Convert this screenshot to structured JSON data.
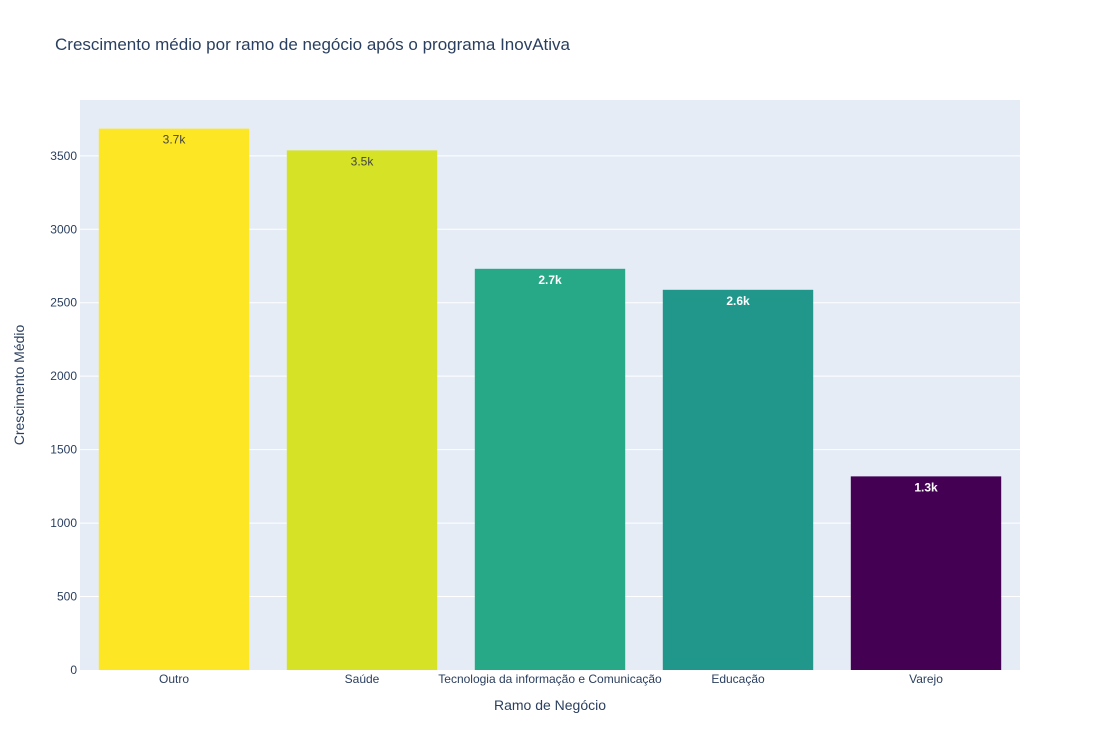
{
  "chart_data": {
    "type": "bar",
    "title": "Crescimento médio por ramo de negócio após o programa InovAtiva",
    "xlabel": "Ramo de Negócio",
    "ylabel": "Crescimento Médio",
    "categories": [
      "Outro",
      "Saúde",
      "Tecnologia da informação e Comunicação",
      "Educação",
      "Varejo"
    ],
    "values": [
      3685,
      3537,
      2731,
      2588,
      1318
    ],
    "data_labels": [
      "3.7k",
      "3.5k",
      "2.7k",
      "2.6k",
      "1.3k"
    ],
    "bar_colors": [
      "#fde725",
      "#d5e226",
      "#27a886",
      "#21978b",
      "#440154"
    ],
    "label_colors": [
      "#444444",
      "#444444",
      "#ffffff",
      "#ffffff",
      "#ffffff"
    ],
    "yticks": [
      0,
      500,
      1000,
      1500,
      2000,
      2500,
      3000,
      3500
    ],
    "ylim": [
      0,
      3880
    ],
    "grid": true,
    "plot_background": "#e5ecf6"
  }
}
